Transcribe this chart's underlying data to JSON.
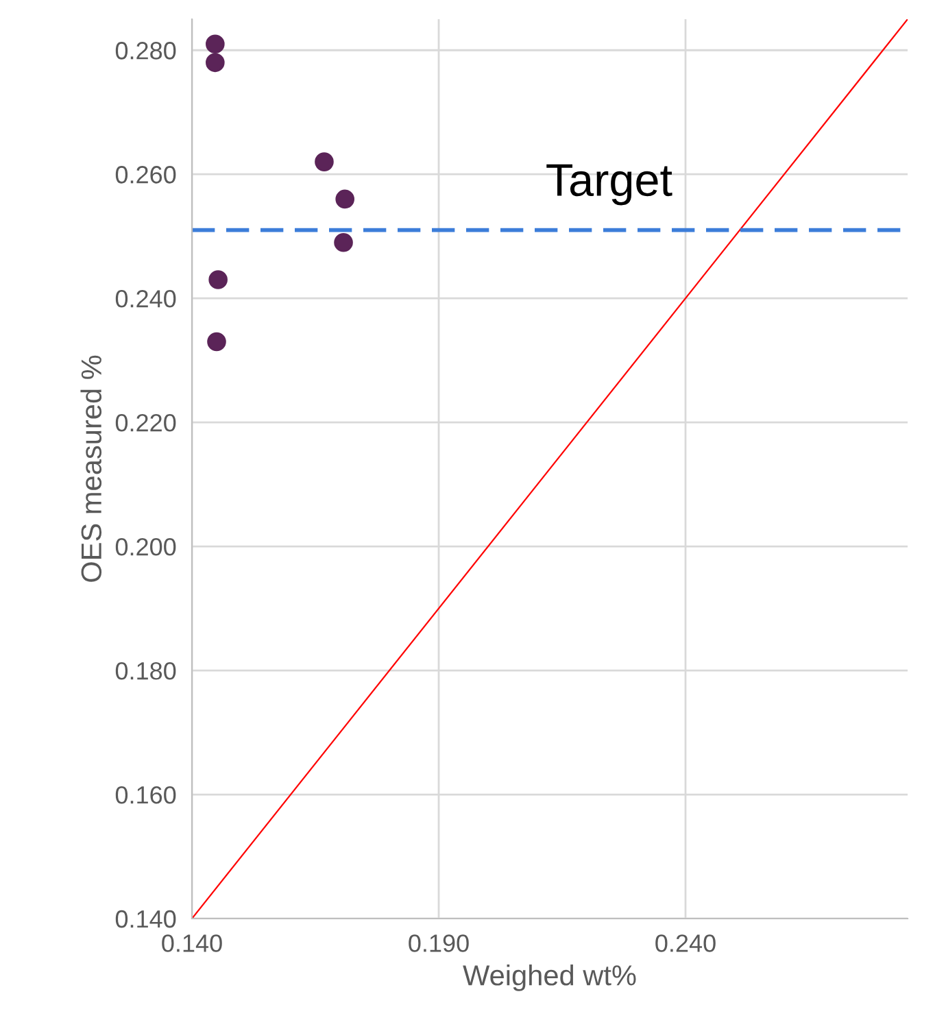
{
  "chart_data": {
    "type": "scatter",
    "xlabel": "Weighed wt%",
    "ylabel": "OES measured %",
    "series": [
      {
        "marker": "circle",
        "color": "#5b2458",
        "x": [
          0.1447,
          0.1447,
          0.1453,
          0.145,
          0.1668,
          0.171,
          0.1707
        ],
        "values": [
          0.281,
          0.278,
          0.243,
          0.233,
          0.262,
          0.256,
          0.249
        ]
      },
      {
        "type": "line",
        "color": "#ff0000",
        "x": [
          0.14,
          0.285
        ],
        "values": [
          0.14,
          0.285
        ]
      }
    ],
    "xlim": [
      0.14,
      0.285
    ],
    "ylim": [
      0.14,
      0.285
    ],
    "xticks": [
      {
        "value": 0.14,
        "label": "0.140"
      },
      {
        "value": 0.19,
        "label": "0.190"
      },
      {
        "value": 0.24,
        "label": "0.240"
      }
    ],
    "yticks": [
      {
        "value": 0.14,
        "label": "0.140"
      },
      {
        "value": 0.16,
        "label": "0.160"
      },
      {
        "value": 0.18,
        "label": "0.180"
      },
      {
        "value": 0.2,
        "label": "0.200"
      },
      {
        "value": 0.22,
        "label": "0.220"
      },
      {
        "value": 0.24,
        "label": "0.240"
      },
      {
        "value": 0.26,
        "label": "0.260"
      },
      {
        "value": 0.28,
        "label": "0.280"
      }
    ],
    "ref_lines": [
      {
        "axis": "y",
        "value": 0.251,
        "label": "Target",
        "color": "#3c7dd9",
        "line_style": "dashed"
      }
    ],
    "grid": true
  }
}
